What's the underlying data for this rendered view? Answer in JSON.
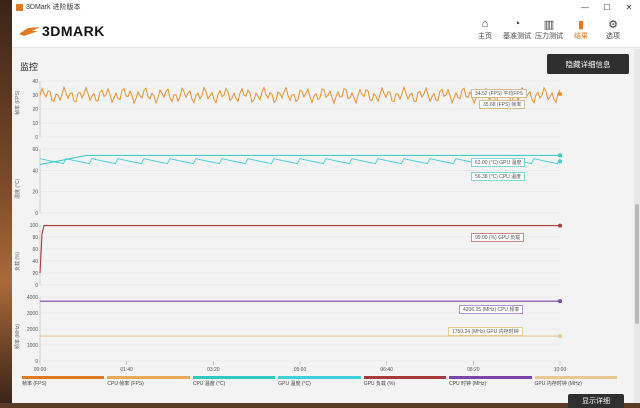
{
  "window": {
    "title": "3DMark 进阶版本",
    "minimize": "—",
    "maximize": "☐",
    "close": "✕"
  },
  "brand": "3DMARK",
  "nav": [
    {
      "label": "主页",
      "icon": "home-icon",
      "glyph": "⌂"
    },
    {
      "label": "基准测试",
      "icon": "gauge-icon",
      "glyph": "◔"
    },
    {
      "label": "压力测试",
      "icon": "stress-icon",
      "glyph": "▥"
    },
    {
      "label": "结果",
      "icon": "results-icon",
      "glyph": "▮"
    },
    {
      "label": "选项",
      "icon": "gear-icon",
      "glyph": "⚙"
    }
  ],
  "section_title": "监控",
  "hide_button": "隐藏详细信息",
  "bottom_button": "显示详细",
  "colors": {
    "accent": "#e07a1f",
    "fps": "#e8922e",
    "cpu_fps": "#e8a85a",
    "gpu_temp": "#2fc9c2",
    "cpu_temp": "#3fd0d8",
    "gpu_load": "#a83a3a",
    "cpu_clock": "#7a44a8",
    "gpu_clock": "#e8c890"
  },
  "panels": {
    "fps": {
      "ylabel": "帧率 (FPS)",
      "ticks": [
        "40",
        "30",
        "20",
        "10",
        "0"
      ]
    },
    "temp": {
      "ylabel": "温度 (°C)",
      "ticks": [
        "60",
        "40",
        "20",
        "0"
      ]
    },
    "load": {
      "ylabel": "负载 (%)",
      "ticks": [
        "100",
        "80",
        "60",
        "40",
        "20",
        "0"
      ]
    },
    "clock": {
      "ylabel": "频率 (MHz)",
      "ticks": [
        "4000",
        "3000",
        "2000",
        "1000",
        "0"
      ]
    }
  },
  "tags": {
    "fps_gpu": "34.52 (FPS) 平均FPS",
    "fps_cpu": "35.68 (FPS) 帧率",
    "gpu_temp": "63.00 (°C) GPU 温度",
    "cpu_temp": "56.38 (°C) CPU 温度",
    "gpu_load": "99.00 (%) GPU 负载",
    "cpu_clock": "4206.25 (MHz) CPU 频率",
    "gpu_clock": "1750.24 (MHz) GPU 内存时钟"
  },
  "x_ticks": [
    "00:00",
    "01:40",
    "03:20",
    "05:00",
    "06:40",
    "08:20",
    "10:00"
  ],
  "legend": [
    {
      "label": "帧率 (FPS)",
      "color": "#e07a1f"
    },
    {
      "label": "CPU 帧率 (FPS)",
      "color": "#e8a85a"
    },
    {
      "label": "CPU 温度 (°C)",
      "color": "#2fc9c2"
    },
    {
      "label": "GPU 温度 (°C)",
      "color": "#3fd0d8"
    },
    {
      "label": "GPU 负载 (%)",
      "color": "#a83a3a"
    },
    {
      "label": "CPU 时钟 (MHz)",
      "color": "#7a44a8"
    },
    {
      "label": "GPU 内存时钟 (MHz)",
      "color": "#e8c890"
    }
  ],
  "chart_data": {
    "type": "line",
    "x": [
      "00:00",
      "01:40",
      "03:20",
      "05:00",
      "06:40",
      "08:20",
      "10:00"
    ],
    "series": [
      {
        "name": "帧率 (FPS)",
        "unit": "FPS",
        "range": [
          0,
          45
        ],
        "values": [
          34.52,
          35,
          34,
          35,
          34,
          35,
          34.52
        ],
        "current": 34.52
      },
      {
        "name": "CPU 帧率 (FPS)",
        "unit": "FPS",
        "current": 35.68
      },
      {
        "name": "GPU 温度 (°C)",
        "unit": "°C",
        "range": [
          0,
          70
        ],
        "values": [
          53,
          62,
          63,
          63,
          63,
          63,
          63
        ],
        "current": 63.0
      },
      {
        "name": "CPU 温度 (°C)",
        "unit": "°C",
        "range": [
          0,
          70
        ],
        "values": [
          55,
          57,
          56,
          56,
          57,
          56,
          56.38
        ],
        "current": 56.38
      },
      {
        "name": "GPU 负载 (%)",
        "unit": "%",
        "range": [
          0,
          100
        ],
        "values": [
          20,
          99,
          99,
          99,
          99,
          99,
          99
        ],
        "current": 99.0
      },
      {
        "name": "CPU 时钟 (MHz)",
        "unit": "MHz",
        "range": [
          0,
          4500
        ],
        "values": [
          4206,
          4206,
          4206,
          4206,
          4206,
          4206,
          4206.25
        ],
        "current": 4206.25
      },
      {
        "name": "GPU 内存时钟 (MHz)",
        "unit": "MHz",
        "range": [
          0,
          4500
        ],
        "values": [
          1750,
          1750,
          1750,
          1750,
          1750,
          1750,
          1750.24
        ],
        "current": 1750.24
      }
    ]
  }
}
